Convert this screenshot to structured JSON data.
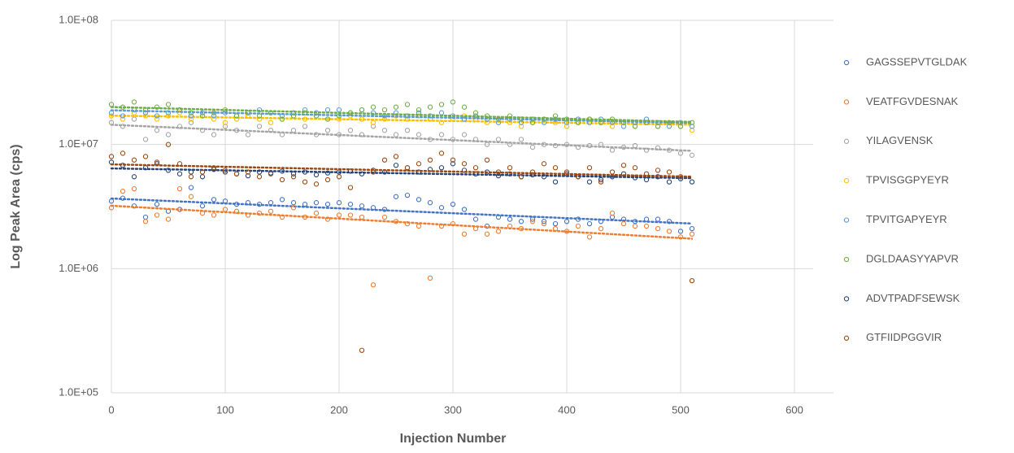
{
  "chart_data": {
    "type": "scatter",
    "ylabel": "Log Peak Area (cps)",
    "xlabel": "Injection Number",
    "xlim": [
      0,
      600
    ],
    "xticks": [
      0,
      100,
      200,
      300,
      400,
      500,
      600
    ],
    "ylim": [
      100000,
      100000000
    ],
    "log_y": true,
    "yticks": [
      {
        "value": 100000,
        "label": "1.0E+05"
      },
      {
        "value": 1000000,
        "label": "1.0E+06"
      },
      {
        "value": 10000000,
        "label": "1.0E+07"
      },
      {
        "value": 100000000,
        "label": "1.0E+08"
      }
    ],
    "grid": true,
    "legend": "right",
    "trendline": "linear",
    "x": [
      0,
      10,
      20,
      30,
      40,
      50,
      60,
      70,
      80,
      90,
      100,
      110,
      120,
      130,
      140,
      150,
      160,
      170,
      180,
      190,
      200,
      210,
      220,
      230,
      240,
      250,
      260,
      270,
      280,
      290,
      300,
      310,
      320,
      330,
      340,
      350,
      360,
      370,
      380,
      390,
      400,
      410,
      420,
      430,
      440,
      450,
      460,
      470,
      480,
      490,
      500,
      510
    ],
    "series": [
      {
        "name": "GAGSSEPVTGLDAK",
        "color": "#4472c4",
        "values": [
          3500000.0,
          3700000.0,
          3200000.0,
          2600000.0,
          3300000.0,
          2900000.0,
          3000000.0,
          4500000.0,
          3200000.0,
          3600000.0,
          3500000.0,
          3300000.0,
          3400000.0,
          3300000.0,
          3400000.0,
          3600000.0,
          3400000.0,
          3300000.0,
          3400000.0,
          3300000.0,
          3400000.0,
          3300000.0,
          3200000.0,
          3100000.0,
          3000000.0,
          3800000.0,
          3900000.0,
          3600000.0,
          3400000.0,
          3100000.0,
          3300000.0,
          3000000.0,
          2500000.0,
          2200000.0,
          2600000.0,
          2500000.0,
          2400000.0,
          2500000.0,
          2400000.0,
          2300000.0,
          2400000.0,
          2500000.0,
          2300000.0,
          2400000.0,
          2600000.0,
          2500000.0,
          2400000.0,
          2500000.0,
          2500000.0,
          2400000.0,
          2000000.0,
          2100000.0
        ]
      },
      {
        "name": "VEATFGVDESNAK",
        "color": "#ed7d31",
        "values": [
          3100000.0,
          4200000.0,
          4400000.0,
          2400000.0,
          2700000.0,
          2500000.0,
          4400000.0,
          3800000.0,
          2800000.0,
          2700000.0,
          3000000.0,
          2900000.0,
          2700000.0,
          2800000.0,
          2900000.0,
          2600000.0,
          3100000.0,
          2600000.0,
          2800000.0,
          2500000.0,
          2700000.0,
          2700000.0,
          2600000.0,
          740000.0,
          2600000.0,
          2400000.0,
          2300000.0,
          2200000.0,
          840000.0,
          2200000.0,
          2300000.0,
          1900000.0,
          2100000.0,
          1900000.0,
          2000000.0,
          2200000.0,
          2100000.0,
          2400000.0,
          2300000.0,
          2100000.0,
          2000000.0,
          2200000.0,
          1800000.0,
          2100000.0,
          2800000.0,
          2300000.0,
          2200000.0,
          2200000.0,
          2100000.0,
          2000000.0,
          1800000.0,
          1900000.0
        ]
      },
      {
        "name": "YILAGVENSK",
        "color": "#a5a5a5",
        "values": [
          15000000.0,
          14000000.0,
          16000000.0,
          11000000.0,
          13000000.0,
          12000000.0,
          14000000.0,
          15000000.0,
          13000000.0,
          12000000.0,
          14000000.0,
          13000000.0,
          12000000.0,
          14000000.0,
          13000000.0,
          12000000.0,
          13000000.0,
          14000000.0,
          12000000.0,
          13000000.0,
          12000000.0,
          13000000.0,
          12000000.0,
          14000000.0,
          13000000.0,
          12000000.0,
          13000000.0,
          12000000.0,
          11000000.0,
          12000000.0,
          11000000.0,
          12000000.0,
          11000000.0,
          10000000.0,
          11000000.0,
          10000000.0,
          11000000.0,
          9500000.0,
          10000000.0,
          9800000.0,
          10000000.0,
          9500000.0,
          9800000.0,
          10000000.0,
          9000000.0,
          9500000.0,
          9800000.0,
          9000000.0,
          9400000.0,
          9000000.0,
          8500000.0,
          8200000.0
        ]
      },
      {
        "name": "TPVISGGPYEYR",
        "color": "#ffc000",
        "values": [
          17000000.0,
          16000000.0,
          18000000.0,
          17000000.0,
          16000000.0,
          17000000.0,
          18000000.0,
          16000000.0,
          17000000.0,
          16000000.0,
          15000000.0,
          16000000.0,
          17000000.0,
          16000000.0,
          15000000.0,
          16000000.0,
          17000000.0,
          16000000.0,
          17000000.0,
          16000000.0,
          16000000.0,
          17000000.0,
          16000000.0,
          15000000.0,
          16000000.0,
          17000000.0,
          16000000.0,
          17000000.0,
          16000000.0,
          15000000.0,
          16000000.0,
          17000000.0,
          16000000.0,
          15000000.0,
          16000000.0,
          15000000.0,
          14000000.0,
          15000000.0,
          16000000.0,
          15000000.0,
          14000000.0,
          15000000.0,
          16000000.0,
          15000000.0,
          14000000.0,
          15000000.0,
          14000000.0,
          15000000.0,
          14000000.0,
          15000000.0,
          14000000.0,
          13000000.0
        ]
      },
      {
        "name": "TPVITGAPYEYR",
        "color": "#5b9bd5",
        "values": [
          18000000.0,
          17000000.0,
          19000000.0,
          18000000.0,
          17000000.0,
          18000000.0,
          19000000.0,
          17000000.0,
          18000000.0,
          17000000.0,
          18000000.0,
          17000000.0,
          18000000.0,
          19000000.0,
          18000000.0,
          17000000.0,
          18000000.0,
          19000000.0,
          18000000.0,
          19000000.0,
          19000000.0,
          18000000.0,
          19000000.0,
          18000000.0,
          17000000.0,
          18000000.0,
          17000000.0,
          18000000.0,
          17000000.0,
          18000000.0,
          17000000.0,
          16000000.0,
          17000000.0,
          16000000.0,
          15000000.0,
          16000000.0,
          15000000.0,
          16000000.0,
          15000000.0,
          16000000.0,
          15000000.0,
          16000000.0,
          15000000.0,
          16000000.0,
          15000000.0,
          14000000.0,
          15000000.0,
          16000000.0,
          15000000.0,
          14000000.0,
          15000000.0,
          14000000.0
        ]
      },
      {
        "name": "DGLDAASYYAPVR",
        "color": "#70ad47",
        "values": [
          21000000.0,
          20000000.0,
          22000000.0,
          19000000.0,
          20000000.0,
          21000000.0,
          19000000.0,
          18000000.0,
          17000000.0,
          18000000.0,
          19000000.0,
          17000000.0,
          18000000.0,
          17000000.0,
          18000000.0,
          16000000.0,
          17000000.0,
          18000000.0,
          17000000.0,
          16000000.0,
          17000000.0,
          18000000.0,
          19000000.0,
          20000000.0,
          19000000.0,
          20000000.0,
          21000000.0,
          19000000.0,
          20000000.0,
          21000000.0,
          22000000.0,
          20000000.0,
          18000000.0,
          17000000.0,
          16000000.0,
          17000000.0,
          16000000.0,
          15000000.0,
          16000000.0,
          17000000.0,
          16000000.0,
          15000000.0,
          16000000.0,
          15000000.0,
          16000000.0,
          15000000.0,
          14000000.0,
          15000000.0,
          14000000.0,
          15000000.0,
          14000000.0,
          15000000.0
        ]
      },
      {
        "name": "ADVTPADFSEWSK",
        "color": "#264478",
        "values": [
          7200000.0,
          6800000.0,
          5500000.0,
          6500000.0,
          7000000.0,
          6200000.0,
          5800000.0,
          6000000.0,
          5500000.0,
          6300000.0,
          6000000.0,
          5800000.0,
          5600000.0,
          6000000.0,
          5900000.0,
          6100000.0,
          5800000.0,
          6000000.0,
          5700000.0,
          5900000.0,
          6000000.0,
          6100000.0,
          5800000.0,
          6200000.0,
          6000000.0,
          6800000.0,
          6500000.0,
          6000000.0,
          6300000.0,
          6500000.0,
          7000000.0,
          6200000.0,
          5800000.0,
          6000000.0,
          5600000.0,
          5800000.0,
          5500000.0,
          5700000.0,
          5500000.0,
          5000000.0,
          5800000.0,
          5500000.0,
          5000000.0,
          5200000.0,
          5500000.0,
          5800000.0,
          5400000.0,
          5200000.0,
          5500000.0,
          5000000.0,
          5300000.0,
          5000000.0
        ]
      },
      {
        "name": "GTFIIDPGGVIR",
        "color": "#9e480e",
        "values": [
          8000000.0,
          8500000.0,
          7500000.0,
          8000000.0,
          7200000.0,
          10000000.0,
          7000000.0,
          5500000.0,
          6000000.0,
          6500000.0,
          6200000.0,
          5800000.0,
          6000000.0,
          5500000.0,
          5800000.0,
          5200000.0,
          5500000.0,
          5000000.0,
          4800000.0,
          5200000.0,
          5500000.0,
          4500000.0,
          220000.0,
          6000000.0,
          7500000.0,
          8000000.0,
          6500000.0,
          7000000.0,
          7500000.0,
          8500000.0,
          7500000.0,
          7000000.0,
          6500000.0,
          7500000.0,
          6000000.0,
          6500000.0,
          5500000.0,
          6000000.0,
          7000000.0,
          6500000.0,
          6000000.0,
          5500000.0,
          6500000.0,
          5000000.0,
          6000000.0,
          6800000.0,
          6500000.0,
          5800000.0,
          6200000.0,
          6000000.0,
          5500000.0,
          800000.0
        ]
      }
    ]
  }
}
